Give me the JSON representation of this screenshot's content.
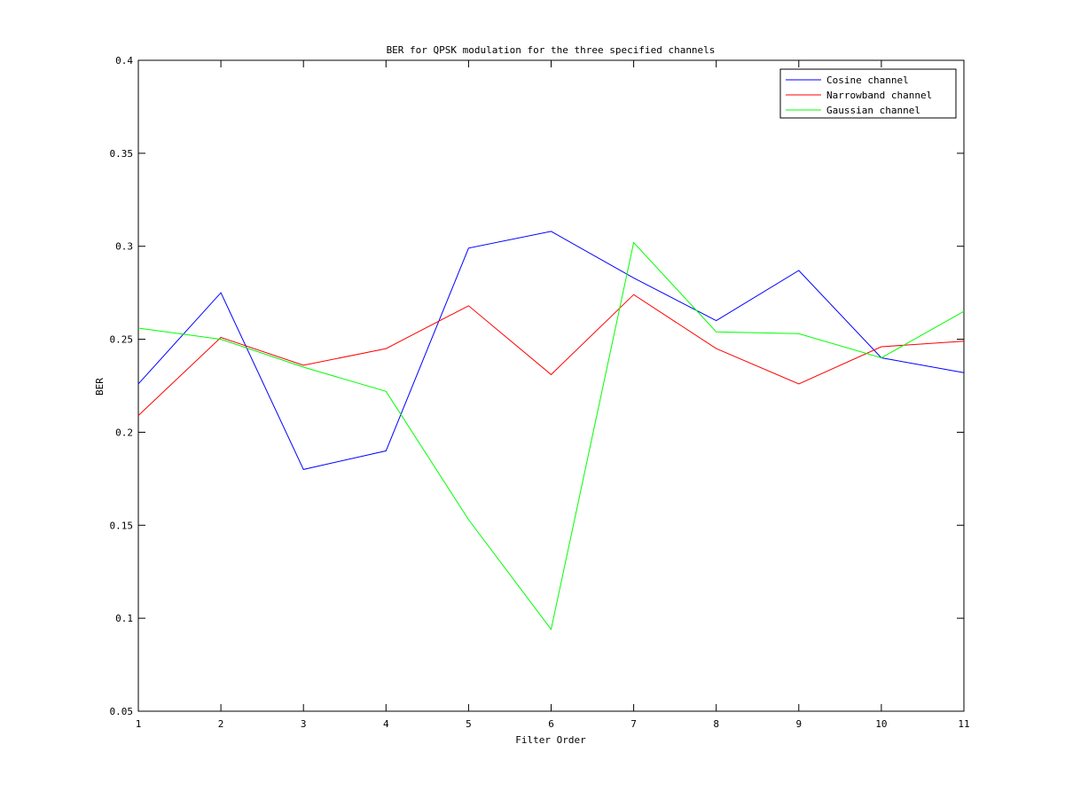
{
  "chart_data": {
    "type": "line",
    "title": "BER for QPSK modulation for the three specified channels",
    "xlabel": "Filter Order",
    "ylabel": "BER",
    "xlim": [
      1,
      11
    ],
    "ylim": [
      0.05,
      0.4
    ],
    "x": [
      1,
      2,
      3,
      4,
      5,
      6,
      7,
      8,
      9,
      10,
      11
    ],
    "xticks": [
      "1",
      "2",
      "3",
      "4",
      "5",
      "6",
      "7",
      "8",
      "9",
      "10",
      "11"
    ],
    "yticks": [
      "0.05",
      "0.1",
      "0.15",
      "0.2",
      "0.25",
      "0.3",
      "0.35",
      "0.4"
    ],
    "grid": false,
    "legend_position": "top-right",
    "series": [
      {
        "name": "Cosine channel",
        "color": "#0000ff",
        "values": [
          0.226,
          0.275,
          0.18,
          0.19,
          0.299,
          0.308,
          0.283,
          0.26,
          0.287,
          0.24,
          0.232
        ]
      },
      {
        "name": "Narrowband channel",
        "color": "#ff0000",
        "values": [
          0.209,
          0.251,
          0.236,
          0.245,
          0.268,
          0.231,
          0.274,
          0.245,
          0.226,
          0.246,
          0.249
        ]
      },
      {
        "name": "Gaussian channel",
        "color": "#00ff00",
        "values": [
          0.256,
          0.25,
          0.235,
          0.222,
          0.153,
          0.094,
          0.302,
          0.254,
          0.253,
          0.24,
          0.265
        ]
      }
    ]
  }
}
